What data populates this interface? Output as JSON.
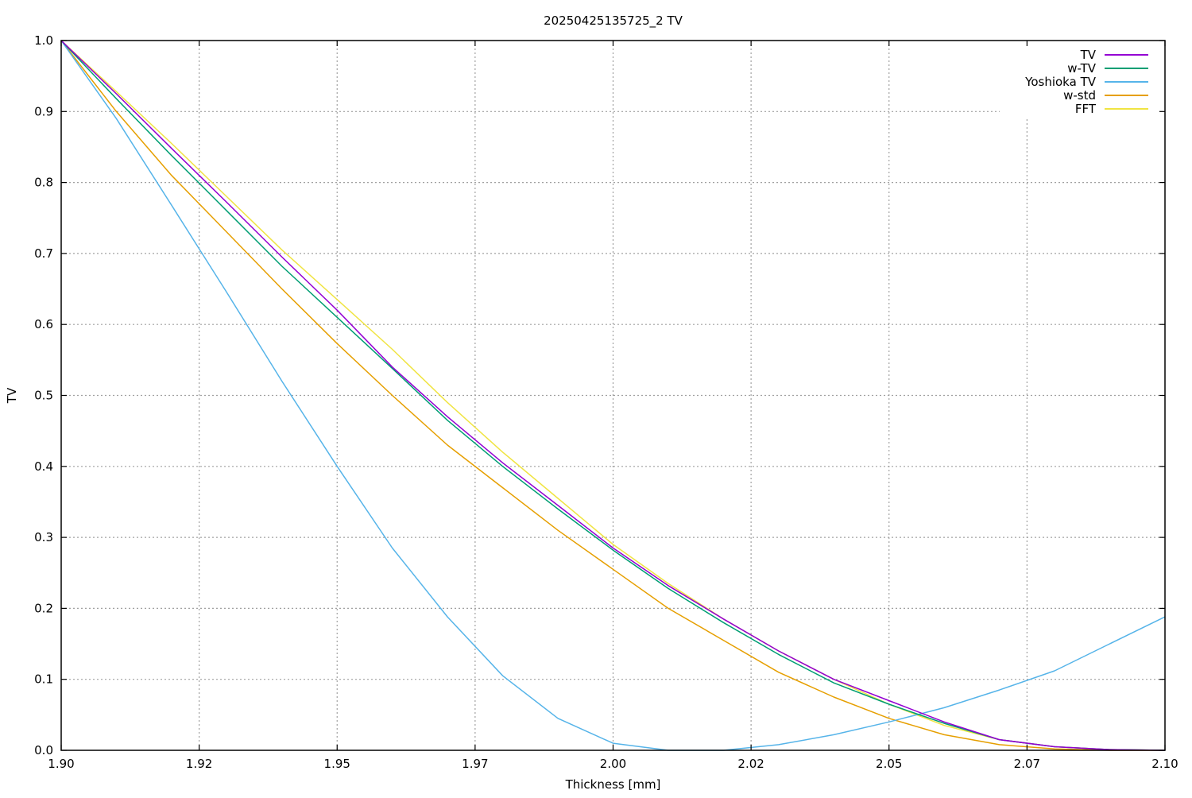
{
  "chart_data": {
    "type": "line",
    "title": "20250425135725_2 TV",
    "xlabel": "Thickness [mm]",
    "ylabel": "TV",
    "xlim": [
      1.9,
      2.1
    ],
    "ylim": [
      0.0,
      1.0
    ],
    "x_ticks": [
      1.9,
      1.925,
      1.95,
      1.975,
      2.0,
      2.025,
      2.05,
      2.075,
      2.1
    ],
    "x_tick_labels": [
      "1.90",
      "1.92",
      "1.95",
      "1.97",
      "2.00",
      "2.02",
      "2.05",
      "2.07",
      "2.10"
    ],
    "y_ticks": [
      0.0,
      0.1,
      0.2,
      0.3,
      0.4,
      0.5,
      0.6,
      0.7,
      0.8,
      0.9,
      1.0
    ],
    "y_tick_labels": [
      "0.0",
      "0.1",
      "0.2",
      "0.3",
      "0.4",
      "0.5",
      "0.6",
      "0.7",
      "0.8",
      "0.9",
      "1.0"
    ],
    "grid": true,
    "legend_position": "top-right",
    "x": [
      1.9,
      1.91,
      1.92,
      1.93,
      1.94,
      1.95,
      1.96,
      1.97,
      1.98,
      1.99,
      2.0,
      2.01,
      2.02,
      2.03,
      2.04,
      2.05,
      2.06,
      2.07,
      2.08,
      2.09,
      2.1
    ],
    "series": [
      {
        "name": "TV",
        "color": "#9400d3",
        "values": [
          1.0,
          0.925,
          0.848,
          0.772,
          0.695,
          0.62,
          0.54,
          0.47,
          0.405,
          0.345,
          0.285,
          0.232,
          0.185,
          0.14,
          0.1,
          0.07,
          0.04,
          0.015,
          0.005,
          0.001,
          0.0
        ]
      },
      {
        "name": "w-TV",
        "color": "#009e73",
        "values": [
          1.0,
          0.918,
          0.838,
          0.76,
          0.682,
          0.61,
          0.538,
          0.465,
          0.4,
          0.34,
          0.282,
          0.228,
          0.18,
          0.135,
          0.095,
          0.065,
          0.038,
          0.015,
          0.005,
          0.001,
          0.0
        ]
      },
      {
        "name": "Yoshioka TV",
        "color": "#56b4e9",
        "values": [
          1.0,
          0.89,
          0.768,
          0.645,
          0.52,
          0.4,
          0.285,
          0.188,
          0.105,
          0.045,
          0.01,
          0.0,
          0.0,
          0.008,
          0.022,
          0.04,
          0.06,
          0.085,
          0.112,
          0.15,
          0.188
        ]
      },
      {
        "name": "w-std",
        "color": "#e69f00",
        "values": [
          1.0,
          0.9,
          0.81,
          0.73,
          0.65,
          0.573,
          0.5,
          0.43,
          0.37,
          0.31,
          0.255,
          0.2,
          0.155,
          0.11,
          0.075,
          0.045,
          0.022,
          0.008,
          0.002,
          0.0,
          0.0
        ]
      },
      {
        "name": "FFT",
        "color": "#f0e442",
        "values": [
          1.0,
          0.928,
          0.855,
          0.78,
          0.705,
          0.635,
          0.565,
          0.49,
          0.42,
          0.355,
          0.29,
          0.235,
          0.185,
          0.14,
          0.1,
          0.065,
          0.035,
          0.015,
          0.005,
          0.001,
          0.0
        ]
      }
    ]
  }
}
